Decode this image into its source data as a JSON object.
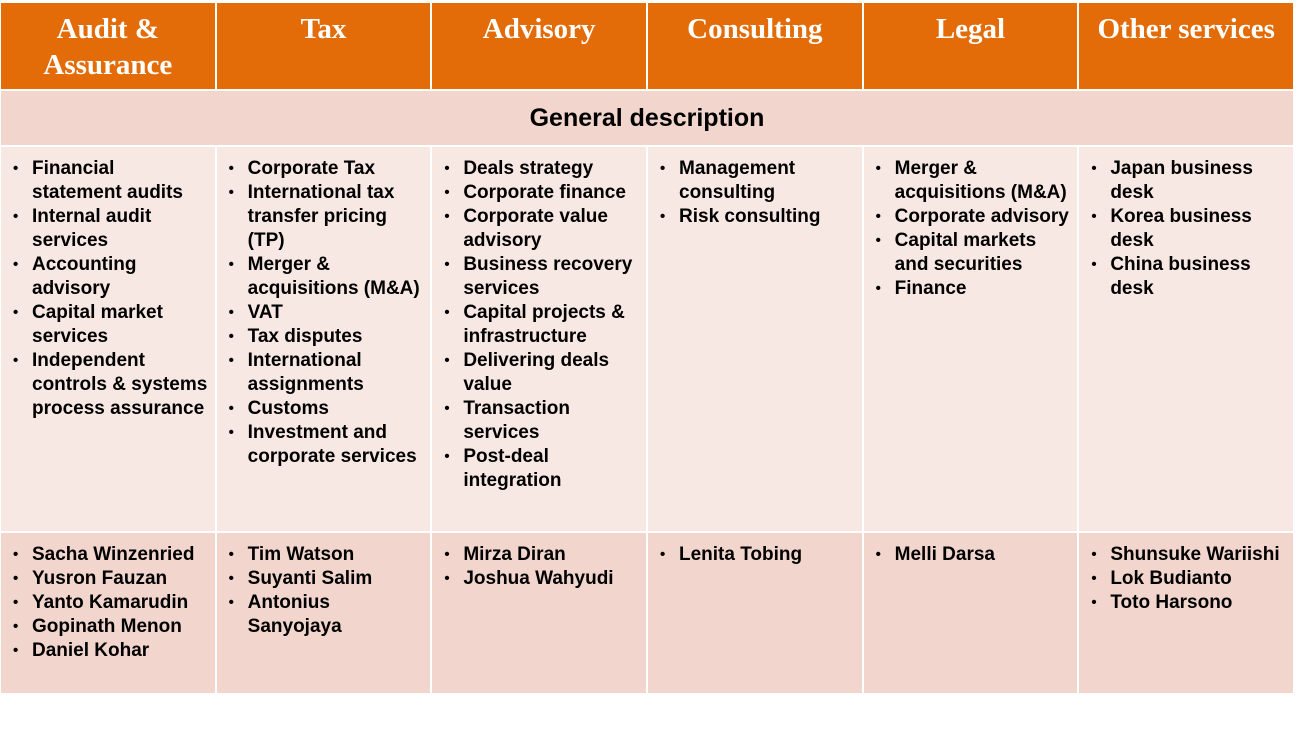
{
  "headers": [
    "Audit & Assurance",
    "Tax",
    "Advisory",
    "Consulting",
    "Legal",
    "Other services"
  ],
  "band_title": "General description",
  "descriptions": [
    [
      "Financial statement audits",
      "Internal audit services",
      "Accounting advisory",
      "Capital market services",
      "Independent controls & systems process assurance"
    ],
    [
      "Corporate Tax",
      "International tax transfer pricing (TP)",
      "Merger & acquisitions (M&A)",
      "VAT",
      "Tax disputes",
      "International assignments",
      "Customs",
      "Investment and corporate services"
    ],
    [
      "Deals strategy",
      "Corporate finance",
      "Corporate value advisory",
      "Business recovery services",
      "Capital projects & infrastructure",
      "Delivering deals value",
      "Transaction services",
      "Post-deal integration"
    ],
    [
      "Management consulting",
      "Risk consulting"
    ],
    [
      "Merger & acquisitions (M&A)",
      "Corporate advisory",
      "Capital markets and securities",
      "Finance"
    ],
    [
      "Japan business desk",
      "Korea business desk",
      "China business desk"
    ]
  ],
  "people": [
    [
      "Sacha Winzenried",
      "Yusron Fauzan",
      "Yanto Kamarudin",
      "Gopinath Menon",
      "Daniel Kohar"
    ],
    [
      "Tim Watson",
      "Suyanti Salim",
      "Antonius Sanyojaya"
    ],
    [
      "Mirza Diran",
      "Joshua Wahyudi"
    ],
    [
      "Lenita Tobing"
    ],
    [
      "Melli Darsa"
    ],
    [
      "Shunsuke Wariishi",
      "Lok Budianto",
      "Toto Harsono"
    ]
  ],
  "colors": {
    "header_bg": "#e36c09",
    "band_bg": "#f2d5cc",
    "desc_bg": "#f8e8e4",
    "people_bg": "#f2d5cc"
  }
}
